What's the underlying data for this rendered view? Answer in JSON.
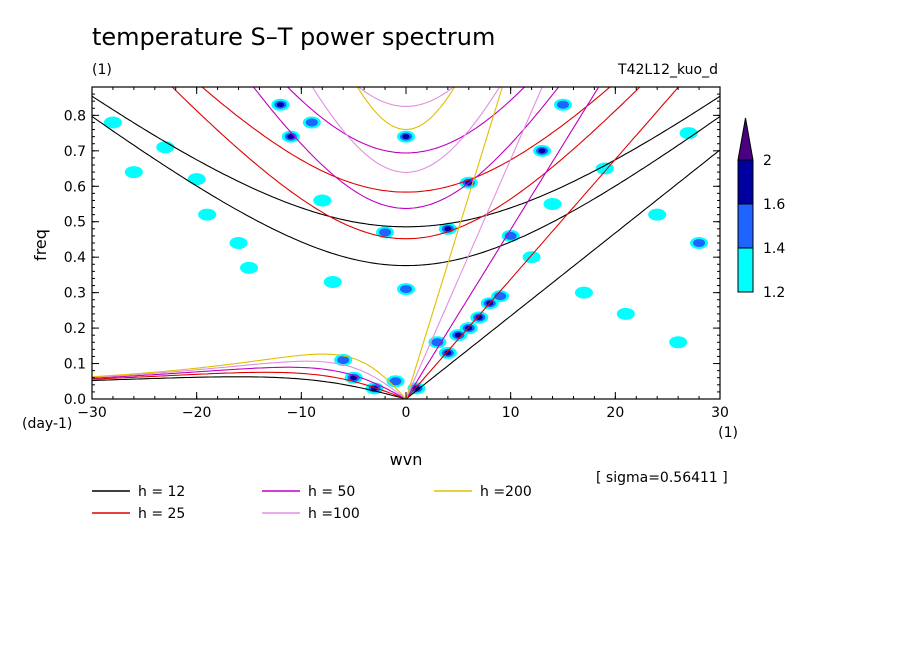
{
  "chart_data": {
    "type": "heatmap",
    "title": "temperature S–T power spectrum",
    "subtitle_left": "(1)",
    "subtitle_right": "T42L12_kuo_d",
    "xlabel": "wvn",
    "ylabel": "freq",
    "x_unit": "(1)",
    "y_unit": "(day-1)",
    "xlim": [
      -30,
      30
    ],
    "ylim": [
      0.0,
      0.88
    ],
    "xticks": [
      -30,
      -20,
      -10,
      0,
      10,
      20,
      30
    ],
    "yticks": [
      0.0,
      0.1,
      0.2,
      0.3,
      0.4,
      0.5,
      0.6,
      0.7,
      0.8
    ],
    "sigma_note": "[ sigma=0.56411 ]",
    "colorbar": {
      "levels": [
        "1.2",
        "1.4",
        "1.6",
        "2"
      ],
      "colors": [
        "#00ffff",
        "#1e64ff",
        "#0000a0",
        "#4b0082"
      ]
    },
    "legend": [
      {
        "label": "h = 12",
        "color": "#000000",
        "h": 12
      },
      {
        "label": "h = 25",
        "color": "#e00000",
        "h": 25
      },
      {
        "label": "h = 50",
        "color": "#c000c0",
        "h": 50
      },
      {
        "label": "h =100",
        "color": "#e090e0",
        "h": 100
      },
      {
        "label": "h =200",
        "color": "#e0c000",
        "h": 200
      }
    ],
    "blobs": [
      {
        "x": -28,
        "y": 0.78,
        "level": 1
      },
      {
        "x": -26,
        "y": 0.64,
        "level": 1
      },
      {
        "x": -23,
        "y": 0.71,
        "level": 1
      },
      {
        "x": -20,
        "y": 0.62,
        "level": 1
      },
      {
        "x": -19,
        "y": 0.52,
        "level": 1
      },
      {
        "x": -16,
        "y": 0.44,
        "level": 1
      },
      {
        "x": -15,
        "y": 0.37,
        "level": 1
      },
      {
        "x": -12,
        "y": 0.83,
        "level": 3
      },
      {
        "x": -11,
        "y": 0.74,
        "level": 3
      },
      {
        "x": -9,
        "y": 0.78,
        "level": 2
      },
      {
        "x": -8,
        "y": 0.56,
        "level": 1
      },
      {
        "x": -7,
        "y": 0.33,
        "level": 1
      },
      {
        "x": -6,
        "y": 0.11,
        "level": 2
      },
      {
        "x": -5,
        "y": 0.06,
        "level": 3
      },
      {
        "x": -3,
        "y": 0.03,
        "level": 3
      },
      {
        "x": -2,
        "y": 0.47,
        "level": 2
      },
      {
        "x": -1,
        "y": 0.05,
        "level": 2
      },
      {
        "x": 0,
        "y": 0.74,
        "level": 3
      },
      {
        "x": 0,
        "y": 0.31,
        "level": 2
      },
      {
        "x": 1,
        "y": 0.03,
        "level": 3
      },
      {
        "x": 3,
        "y": 0.16,
        "level": 2
      },
      {
        "x": 4,
        "y": 0.48,
        "level": 3
      },
      {
        "x": 4,
        "y": 0.13,
        "level": 3
      },
      {
        "x": 5,
        "y": 0.18,
        "level": 3
      },
      {
        "x": 6,
        "y": 0.2,
        "level": 3
      },
      {
        "x": 6,
        "y": 0.61,
        "level": 3
      },
      {
        "x": 7,
        "y": 0.23,
        "level": 3
      },
      {
        "x": 8,
        "y": 0.27,
        "level": 3
      },
      {
        "x": 9,
        "y": 0.29,
        "level": 2
      },
      {
        "x": 10,
        "y": 0.46,
        "level": 2
      },
      {
        "x": 12,
        "y": 0.4,
        "level": 1
      },
      {
        "x": 13,
        "y": 0.7,
        "level": 3
      },
      {
        "x": 14,
        "y": 0.55,
        "level": 1
      },
      {
        "x": 15,
        "y": 0.83,
        "level": 2
      },
      {
        "x": 17,
        "y": 0.3,
        "level": 1
      },
      {
        "x": 19,
        "y": 0.65,
        "level": 1
      },
      {
        "x": 21,
        "y": 0.24,
        "level": 1
      },
      {
        "x": 24,
        "y": 0.52,
        "level": 1
      },
      {
        "x": 26,
        "y": 0.16,
        "level": 1
      },
      {
        "x": 28,
        "y": 0.44,
        "level": 2
      },
      {
        "x": 27,
        "y": 0.75,
        "level": 1
      }
    ]
  }
}
